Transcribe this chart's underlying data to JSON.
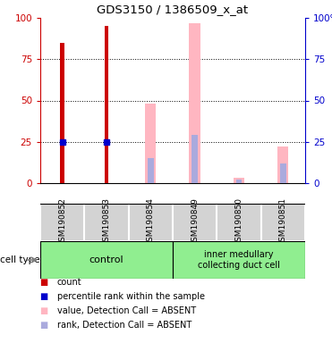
{
  "title": "GDS3150 / 1386509_x_at",
  "samples": [
    "GSM190852",
    "GSM190853",
    "GSM190854",
    "GSM190849",
    "GSM190850",
    "GSM190851"
  ],
  "count_values": [
    85,
    95,
    0,
    0,
    0,
    0
  ],
  "count_color": "#CC0000",
  "percentile_values": [
    25,
    25,
    0,
    0,
    0,
    0
  ],
  "percentile_color": "#0000CC",
  "value_absent": [
    0,
    0,
    48,
    97,
    3,
    22
  ],
  "value_absent_color": "#FFB6C1",
  "rank_absent": [
    0,
    0,
    15,
    29,
    2,
    12
  ],
  "rank_absent_color": "#AAAADD",
  "ylim": [
    0,
    100
  ],
  "yticks": [
    0,
    25,
    50,
    75,
    100
  ],
  "ytick_labels_left": [
    "0",
    "25",
    "50",
    "75",
    "100"
  ],
  "ytick_labels_right": [
    "0",
    "25",
    "50",
    "75",
    "100%"
  ],
  "left_tick_color": "#CC0000",
  "right_tick_color": "#0000CC",
  "bg_color_plot": "#ffffff",
  "sample_box_color": "#D3D3D3",
  "group_box_color": "#90EE90",
  "ctrl_label": "control",
  "imcd_label": "inner medullary\ncollecting duct cell",
  "cell_type_label": "cell type",
  "legend_items": [
    {
      "color": "#CC0000",
      "label": "count"
    },
    {
      "color": "#0000CC",
      "label": "percentile rank within the sample"
    },
    {
      "color": "#FFB6C1",
      "label": "value, Detection Call = ABSENT"
    },
    {
      "color": "#AAAADD",
      "label": "rank, Detection Call = ABSENT"
    }
  ]
}
